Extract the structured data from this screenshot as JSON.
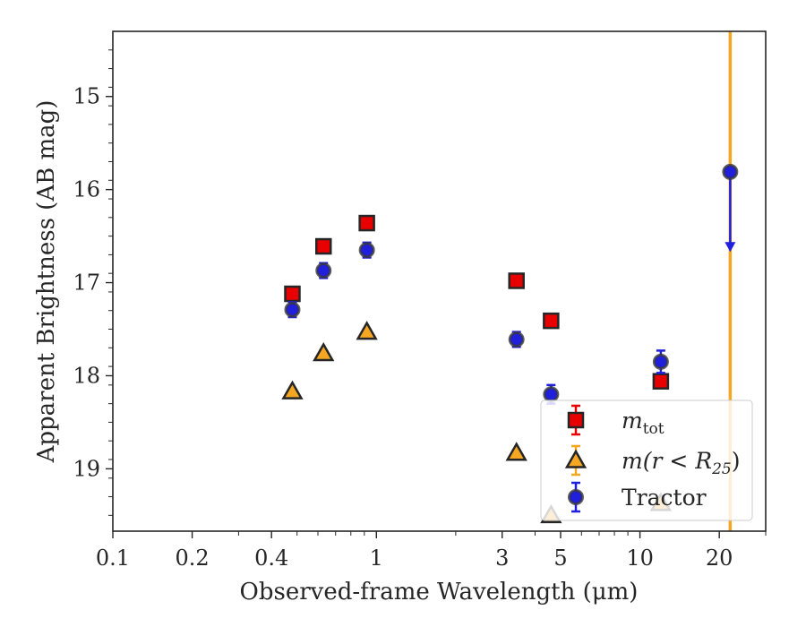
{
  "chart_data": {
    "type": "scatter",
    "xlabel": "Observed-frame Wavelength (μm)",
    "ylabel": "Apparent Brightness (AB mag)",
    "x_scale": "log",
    "xlim": [
      0.1,
      30
    ],
    "ylim": [
      19.67,
      14.3
    ],
    "y_inverted": true,
    "x_ticks": [
      {
        "value": 0.1,
        "label": "0.1"
      },
      {
        "value": 0.2,
        "label": "0.2"
      },
      {
        "value": 0.4,
        "label": "0.4"
      },
      {
        "value": 1,
        "label": "1"
      },
      {
        "value": 3,
        "label": "3"
      },
      {
        "value": 5,
        "label": "5"
      },
      {
        "value": 10,
        "label": "10"
      },
      {
        "value": 20,
        "label": "20"
      }
    ],
    "y_ticks": [
      {
        "value": 15,
        "label": "15"
      },
      {
        "value": 16,
        "label": "16"
      },
      {
        "value": 17,
        "label": "17"
      },
      {
        "value": 18,
        "label": "18"
      },
      {
        "value": 19,
        "label": "19"
      }
    ],
    "grid": false,
    "legend_position": "lower-right",
    "vertical_line": {
      "x": 22.0,
      "color": "#f5a623"
    },
    "series": [
      {
        "name": "m_tot",
        "legend_label": "m",
        "legend_sub": "tot",
        "marker": "square",
        "color": "#e80000",
        "points": [
          {
            "x": 0.48,
            "y": 17.12,
            "err": 0.05
          },
          {
            "x": 0.63,
            "y": 16.61,
            "err": 0.05
          },
          {
            "x": 0.92,
            "y": 16.36,
            "err": 0.05
          },
          {
            "x": 3.4,
            "y": 16.98,
            "err": 0.05
          },
          {
            "x": 4.6,
            "y": 17.41,
            "err": 0.05
          },
          {
            "x": 12.0,
            "y": 18.06,
            "err": 0.05
          }
        ]
      },
      {
        "name": "m(r<R25)",
        "legend_label": "m(r < R",
        "legend_sub": "25",
        "legend_suffix": ")",
        "marker": "triangle",
        "color": "#f5a623",
        "points": [
          {
            "x": 0.48,
            "y": 18.17,
            "err": 0.03
          },
          {
            "x": 0.63,
            "y": 17.76,
            "err": 0.03
          },
          {
            "x": 0.92,
            "y": 17.53,
            "err": 0.03
          },
          {
            "x": 3.4,
            "y": 18.83,
            "err": 0.03
          },
          {
            "x": 4.6,
            "y": 19.5,
            "err": 0.03
          },
          {
            "x": 12.0,
            "y": 19.37,
            "err": 0.03
          }
        ]
      },
      {
        "name": "Tractor",
        "legend_label": "Tractor",
        "marker": "circle",
        "color": "#1f1fdc",
        "points": [
          {
            "x": 0.48,
            "y": 17.29,
            "err": 0.08
          },
          {
            "x": 0.63,
            "y": 16.87,
            "err": 0.08
          },
          {
            "x": 0.92,
            "y": 16.65,
            "err": 0.08
          },
          {
            "x": 3.4,
            "y": 17.61,
            "err": 0.08
          },
          {
            "x": 4.6,
            "y": 18.2,
            "err": 0.1
          },
          {
            "x": 12.0,
            "y": 17.85,
            "err": 0.12
          },
          {
            "x": 22.0,
            "y": 15.81,
            "upper_limit_to": 16.65
          }
        ]
      }
    ]
  }
}
